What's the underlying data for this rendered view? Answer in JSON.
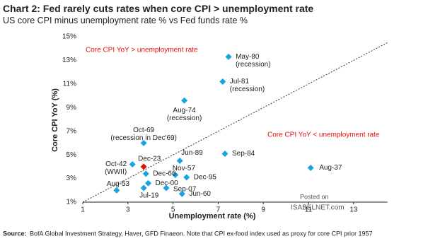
{
  "chart_data": {
    "type": "scatter",
    "title": "Chart 2: Fed rarely cuts rates when core CPI > unemployment rate",
    "subtitle": "US core CPI minus unemployment rate % vs Fed funds rate %",
    "x_label": "Unemployment rate (%)",
    "y_label": "Core CPI YoY (%)",
    "xlim": [
      1,
      14.5
    ],
    "ylim": [
      1,
      15
    ],
    "xticks": [
      1,
      3,
      5,
      7,
      9,
      11,
      13
    ],
    "yticks": [
      {
        "value": 1,
        "label": "1%"
      },
      {
        "value": 3,
        "label": "3%"
      },
      {
        "value": 5,
        "label": "5%"
      },
      {
        "value": 7,
        "label": "7%"
      },
      {
        "value": 9,
        "label": "9%"
      },
      {
        "value": 11,
        "label": "11%"
      },
      {
        "value": 13,
        "label": "13%"
      },
      {
        "value": 15,
        "label": "15%"
      }
    ],
    "x": [
      7.46,
      7.2,
      5.5,
      3.7,
      7.3,
      5.3,
      3.7,
      3.2,
      5.1,
      3.8,
      5.6,
      3.9,
      4.7,
      2.5,
      3.7,
      5.4,
      11.1
    ],
    "values": [
      13.3,
      11.2,
      9.6,
      6.0,
      5.1,
      4.5,
      4.0,
      4.2,
      3.3,
      3.4,
      3.1,
      2.6,
      2.2,
      2.0,
      2.2,
      1.7,
      3.9
    ],
    "point_labels": [
      "May-80",
      "Jul-81",
      "Aug-74",
      "Oct-69",
      "Sep-84",
      "Jun-89",
      "Dec-23",
      "Oct-42",
      "Nov-57",
      "Dec-66",
      "Dec-95",
      "Dec-00",
      "Sep-07",
      "Aug-53",
      "Jul-19",
      "Jun-60",
      "Aug-37"
    ],
    "point_notes": [
      "(recession)",
      "(recession)",
      "(recession)",
      "(recession in Dec'69)",
      null,
      null,
      null,
      "(WWII)",
      null,
      null,
      null,
      null,
      null,
      null,
      null,
      null,
      null
    ],
    "point_colors": [
      "#19a3e0",
      "#19a3e0",
      "#19a3e0",
      "#19a3e0",
      "#19a3e0",
      "#19a3e0",
      "#e3120b",
      "#19a3e0",
      "#19a3e0",
      "#19a3e0",
      "#19a3e0",
      "#19a3e0",
      "#19a3e0",
      "#19a3e0",
      "#19a3e0",
      "#19a3e0",
      "#19a3e0"
    ],
    "annotations": [
      "Core CPI YoY > unemployment rate",
      "Core CPI YoY < unemployment rate"
    ],
    "watermark": [
      "Posted on",
      "ISABELNET.com"
    ],
    "source_label": "Source:",
    "source": "BofA Global Investment Strategy, Haver, GFD Finaeon. Note that CPI ex-food index used as proxy for core CPI prior 1957"
  }
}
